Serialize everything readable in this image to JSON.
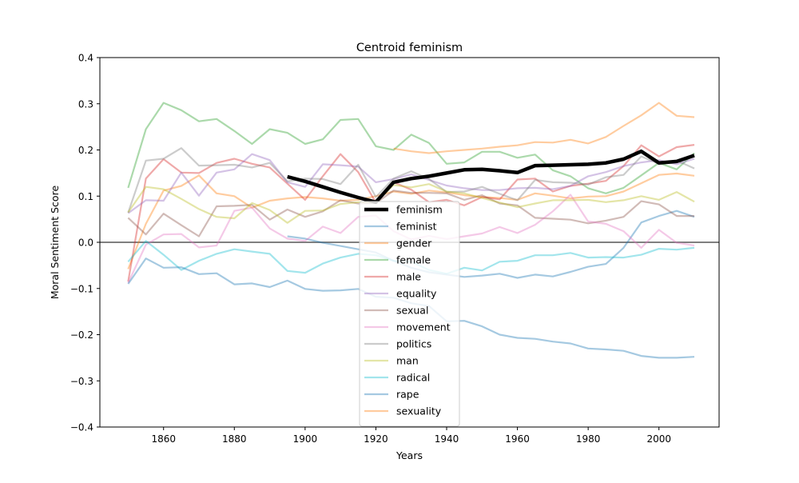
{
  "chart_data": {
    "type": "line",
    "title": "Centroid feminism",
    "xlabel": "Years",
    "ylabel": "Moral Sentiment Score",
    "xlim": [
      1842,
      2017
    ],
    "ylim": [
      -0.4,
      0.4
    ],
    "xticks": [
      1860,
      1880,
      1900,
      1920,
      1940,
      1960,
      1980,
      2000
    ],
    "yticks": [
      -0.4,
      -0.3,
      -0.2,
      -0.1,
      0.0,
      0.1,
      0.2,
      0.3,
      0.4
    ],
    "ytick_labels": [
      "−0.4",
      "−0.3",
      "−0.2",
      "−0.1",
      "0.0",
      "0.1",
      "0.2",
      "0.3",
      "0.4"
    ],
    "zero_line": true,
    "grid": false,
    "legend_position": "center-bottom",
    "series": [
      {
        "name": "feminism",
        "color": "#000000",
        "opacity": 1,
        "bold": true,
        "x": [
          1895,
          1900,
          1905,
          1910,
          1915,
          1920,
          1925,
          1930,
          1935,
          1940,
          1945,
          1950,
          1955,
          1960,
          1965,
          1970,
          1975,
          1980,
          1985,
          1990,
          1995,
          2000,
          2005,
          2010
        ],
        "y": [
          0.142,
          0.132,
          0.12,
          0.108,
          0.097,
          0.087,
          0.13,
          0.138,
          0.143,
          0.15,
          0.157,
          0.158,
          0.155,
          0.151,
          0.166,
          0.167,
          0.168,
          0.169,
          0.172,
          0.18,
          0.197,
          0.172,
          0.175,
          0.188
        ]
      },
      {
        "name": "feminist",
        "color": "#1f77b4",
        "opacity": 0.4,
        "x": [
          1895,
          1900,
          1905,
          1910,
          1915,
          1920,
          1925,
          1930,
          1935,
          1940,
          1945,
          1950,
          1955,
          1960,
          1965,
          1970,
          1975,
          1980,
          1985,
          1990,
          1995,
          2000,
          2005,
          2010
        ],
        "y": [
          0.013,
          0.008,
          -0.001,
          -0.008,
          -0.015,
          -0.022,
          -0.04,
          -0.055,
          -0.065,
          -0.07,
          -0.075,
          -0.072,
          -0.068,
          -0.077,
          -0.07,
          -0.074,
          -0.064,
          -0.053,
          -0.047,
          -0.012,
          0.043,
          0.057,
          0.068,
          0.055
        ]
      },
      {
        "name": "gender",
        "color": "#ff7f0e",
        "opacity": 0.4,
        "x": [
          1850,
          1855,
          1860,
          1865,
          1870,
          1875,
          1880,
          1885,
          1890,
          1895,
          1900,
          1905,
          1910,
          1915,
          1920,
          1925,
          1930,
          1935,
          1940,
          1945,
          1950,
          1955,
          1960,
          1965,
          1970,
          1975,
          1980,
          1985,
          1990,
          1995,
          2000,
          2005,
          2010
        ],
        "y": [
          -0.058,
          0.04,
          0.112,
          0.122,
          0.145,
          0.106,
          0.1,
          0.075,
          0.09,
          0.095,
          0.098,
          0.095,
          0.09,
          0.092,
          0.1,
          0.11,
          0.105,
          0.112,
          0.108,
          0.102,
          0.098,
          0.096,
          0.092,
          0.106,
          0.101,
          0.095,
          0.099,
          0.1,
          0.11,
          0.128,
          0.146,
          0.149,
          0.144
        ]
      },
      {
        "name": "female",
        "color": "#2ca02c",
        "opacity": 0.4,
        "x": [
          1850,
          1855,
          1860,
          1865,
          1870,
          1875,
          1880,
          1885,
          1890,
          1895,
          1900,
          1905,
          1910,
          1915,
          1920,
          1925,
          1930,
          1935,
          1940,
          1945,
          1950,
          1955,
          1960,
          1965,
          1970,
          1975,
          1980,
          1985,
          1990,
          1995,
          2000,
          2005,
          2010
        ],
        "y": [
          0.118,
          0.245,
          0.302,
          0.286,
          0.262,
          0.267,
          0.241,
          0.213,
          0.245,
          0.237,
          0.213,
          0.223,
          0.265,
          0.267,
          0.208,
          0.2,
          0.233,
          0.215,
          0.17,
          0.173,
          0.196,
          0.196,
          0.183,
          0.19,
          0.156,
          0.143,
          0.117,
          0.106,
          0.118,
          0.145,
          0.172,
          0.158,
          0.193
        ]
      },
      {
        "name": "male",
        "color": "#d62728",
        "opacity": 0.4,
        "x": [
          1850,
          1855,
          1860,
          1865,
          1870,
          1875,
          1880,
          1885,
          1890,
          1895,
          1900,
          1905,
          1910,
          1915,
          1920,
          1925,
          1930,
          1935,
          1940,
          1945,
          1950,
          1955,
          1960,
          1965,
          1970,
          1975,
          1980,
          1985,
          1990,
          1995,
          2000,
          2005,
          2010
        ],
        "y": [
          -0.085,
          0.138,
          0.18,
          0.151,
          0.15,
          0.172,
          0.181,
          0.17,
          0.162,
          0.127,
          0.092,
          0.143,
          0.191,
          0.152,
          0.086,
          0.13,
          0.114,
          0.087,
          0.092,
          0.08,
          0.098,
          0.093,
          0.136,
          0.138,
          0.11,
          0.122,
          0.127,
          0.133,
          0.165,
          0.21,
          0.186,
          0.206,
          0.211
        ]
      },
      {
        "name": "equality",
        "color": "#9467bd",
        "opacity": 0.4,
        "x": [
          1850,
          1855,
          1860,
          1865,
          1870,
          1875,
          1880,
          1885,
          1890,
          1895,
          1900,
          1905,
          1910,
          1915,
          1920,
          1925,
          1930,
          1935,
          1940,
          1945,
          1950,
          1955,
          1960,
          1965,
          1970,
          1975,
          1980,
          1985,
          1990,
          1995,
          2000,
          2005,
          2010
        ],
        "y": [
          0.063,
          0.091,
          0.09,
          0.151,
          0.101,
          0.151,
          0.158,
          0.191,
          0.178,
          0.13,
          0.12,
          0.169,
          0.167,
          0.164,
          0.13,
          0.137,
          0.147,
          0.135,
          0.123,
          0.117,
          0.113,
          0.113,
          0.117,
          0.118,
          0.115,
          0.122,
          0.143,
          0.152,
          0.165,
          0.173,
          0.178,
          0.169,
          0.181
        ]
      },
      {
        "name": "sexual",
        "color": "#8c564b",
        "opacity": 0.4,
        "x": [
          1850,
          1855,
          1860,
          1865,
          1870,
          1875,
          1880,
          1885,
          1890,
          1895,
          1900,
          1905,
          1910,
          1915,
          1920,
          1925,
          1930,
          1935,
          1940,
          1945,
          1950,
          1955,
          1960,
          1965,
          1970,
          1975,
          1980,
          1985,
          1990,
          1995,
          2000,
          2005,
          2010
        ],
        "y": [
          0.053,
          0.017,
          0.062,
          0.037,
          0.013,
          0.078,
          0.079,
          0.081,
          0.049,
          0.071,
          0.055,
          0.067,
          0.091,
          0.084,
          0.085,
          0.112,
          0.107,
          0.107,
          0.106,
          0.092,
          0.102,
          0.084,
          0.08,
          0.053,
          0.051,
          0.049,
          0.041,
          0.047,
          0.055,
          0.089,
          0.082,
          0.057,
          0.057
        ]
      },
      {
        "name": "movement",
        "color": "#e377c2",
        "opacity": 0.4,
        "x": [
          1850,
          1855,
          1860,
          1865,
          1870,
          1875,
          1880,
          1885,
          1890,
          1895,
          1900,
          1905,
          1910,
          1915,
          1920,
          1925,
          1930,
          1935,
          1940,
          1945,
          1950,
          1955,
          1960,
          1965,
          1970,
          1975,
          1980,
          1985,
          1990,
          1995,
          2000,
          2005,
          2010
        ],
        "y": [
          -0.088,
          -0.005,
          0.017,
          0.018,
          -0.011,
          -0.007,
          0.068,
          0.075,
          0.03,
          0.008,
          0.003,
          0.034,
          0.02,
          0.055,
          0.058,
          0.024,
          0.006,
          0.014,
          0.007,
          0.013,
          0.019,
          0.033,
          0.02,
          0.038,
          0.067,
          0.103,
          0.045,
          0.04,
          0.024,
          -0.012,
          0.027,
          -0.001,
          -0.007
        ]
      },
      {
        "name": "politics",
        "color": "#7f7f7f",
        "opacity": 0.4,
        "x": [
          1850,
          1855,
          1860,
          1865,
          1870,
          1875,
          1880,
          1885,
          1890,
          1895,
          1900,
          1905,
          1910,
          1915,
          1920,
          1925,
          1930,
          1935,
          1940,
          1945,
          1950,
          1955,
          1960,
          1965,
          1970,
          1975,
          1980,
          1985,
          1990,
          1995,
          2000,
          2005,
          2010
        ],
        "y": [
          0.064,
          0.177,
          0.181,
          0.204,
          0.166,
          0.167,
          0.168,
          0.162,
          0.172,
          0.132,
          0.138,
          0.137,
          0.126,
          0.168,
          0.098,
          0.138,
          0.154,
          0.137,
          0.109,
          0.11,
          0.12,
          0.105,
          0.091,
          0.135,
          0.13,
          0.129,
          0.125,
          0.141,
          0.146,
          0.186,
          0.17,
          0.177,
          0.16
        ]
      },
      {
        "name": "man",
        "color": "#bcbd22",
        "opacity": 0.4,
        "x": [
          1850,
          1855,
          1860,
          1865,
          1870,
          1875,
          1880,
          1885,
          1890,
          1895,
          1900,
          1905,
          1910,
          1915,
          1920,
          1925,
          1930,
          1935,
          1940,
          1945,
          1950,
          1955,
          1960,
          1965,
          1970,
          1975,
          1980,
          1985,
          1990,
          1995,
          2000,
          2005,
          2010
        ],
        "y": [
          0.065,
          0.12,
          0.115,
          0.094,
          0.072,
          0.055,
          0.052,
          0.085,
          0.07,
          0.042,
          0.068,
          0.069,
          0.083,
          0.087,
          0.087,
          0.124,
          0.119,
          0.126,
          0.11,
          0.106,
          0.096,
          0.086,
          0.076,
          0.084,
          0.091,
          0.091,
          0.092,
          0.087,
          0.091,
          0.1,
          0.092,
          0.109,
          0.088
        ]
      },
      {
        "name": "radical",
        "color": "#17becf",
        "opacity": 0.4,
        "x": [
          1850,
          1855,
          1860,
          1865,
          1870,
          1875,
          1880,
          1885,
          1890,
          1895,
          1900,
          1905,
          1910,
          1915,
          1920,
          1925,
          1930,
          1935,
          1940,
          1945,
          1950,
          1955,
          1960,
          1965,
          1970,
          1975,
          1980,
          1985,
          1990,
          1995,
          2000,
          2005,
          2010
        ],
        "y": [
          -0.042,
          0.003,
          -0.027,
          -0.06,
          -0.04,
          -0.025,
          -0.015,
          -0.02,
          -0.025,
          -0.062,
          -0.066,
          -0.046,
          -0.033,
          -0.025,
          -0.028,
          -0.04,
          -0.042,
          -0.06,
          -0.068,
          -0.055,
          -0.061,
          -0.042,
          -0.04,
          -0.028,
          -0.028,
          -0.023,
          -0.033,
          -0.032,
          -0.033,
          -0.027,
          -0.014,
          -0.016,
          -0.012
        ]
      },
      {
        "name": "rape",
        "color": "#1f77b4",
        "opacity": 0.4,
        "x": [
          1850,
          1855,
          1860,
          1865,
          1870,
          1875,
          1880,
          1885,
          1890,
          1895,
          1900,
          1905,
          1910,
          1915,
          1920,
          1925,
          1930,
          1935,
          1940,
          1945,
          1950,
          1955,
          1960,
          1965,
          1970,
          1975,
          1980,
          1985,
          1990,
          1995,
          2000,
          2005,
          2010
        ],
        "y": [
          -0.09,
          -0.035,
          -0.055,
          -0.054,
          -0.069,
          -0.067,
          -0.091,
          -0.089,
          -0.097,
          -0.083,
          -0.101,
          -0.105,
          -0.104,
          -0.101,
          -0.118,
          -0.12,
          -0.132,
          -0.138,
          -0.171,
          -0.17,
          -0.182,
          -0.2,
          -0.207,
          -0.209,
          -0.215,
          -0.219,
          -0.23,
          -0.232,
          -0.235,
          -0.246,
          -0.25,
          -0.25,
          -0.248
        ]
      },
      {
        "name": "sexuality",
        "color": "#ff7f0e",
        "opacity": 0.4,
        "x": [
          1925,
          1930,
          1935,
          1940,
          1945,
          1950,
          1955,
          1960,
          1965,
          1970,
          1975,
          1980,
          1985,
          1990,
          1995,
          2000,
          2005,
          2010
        ],
        "y": [
          0.203,
          0.197,
          0.193,
          0.197,
          0.2,
          0.203,
          0.207,
          0.21,
          0.217,
          0.216,
          0.222,
          0.214,
          0.228,
          0.252,
          0.275,
          0.302,
          0.274,
          0.271
        ]
      }
    ]
  }
}
